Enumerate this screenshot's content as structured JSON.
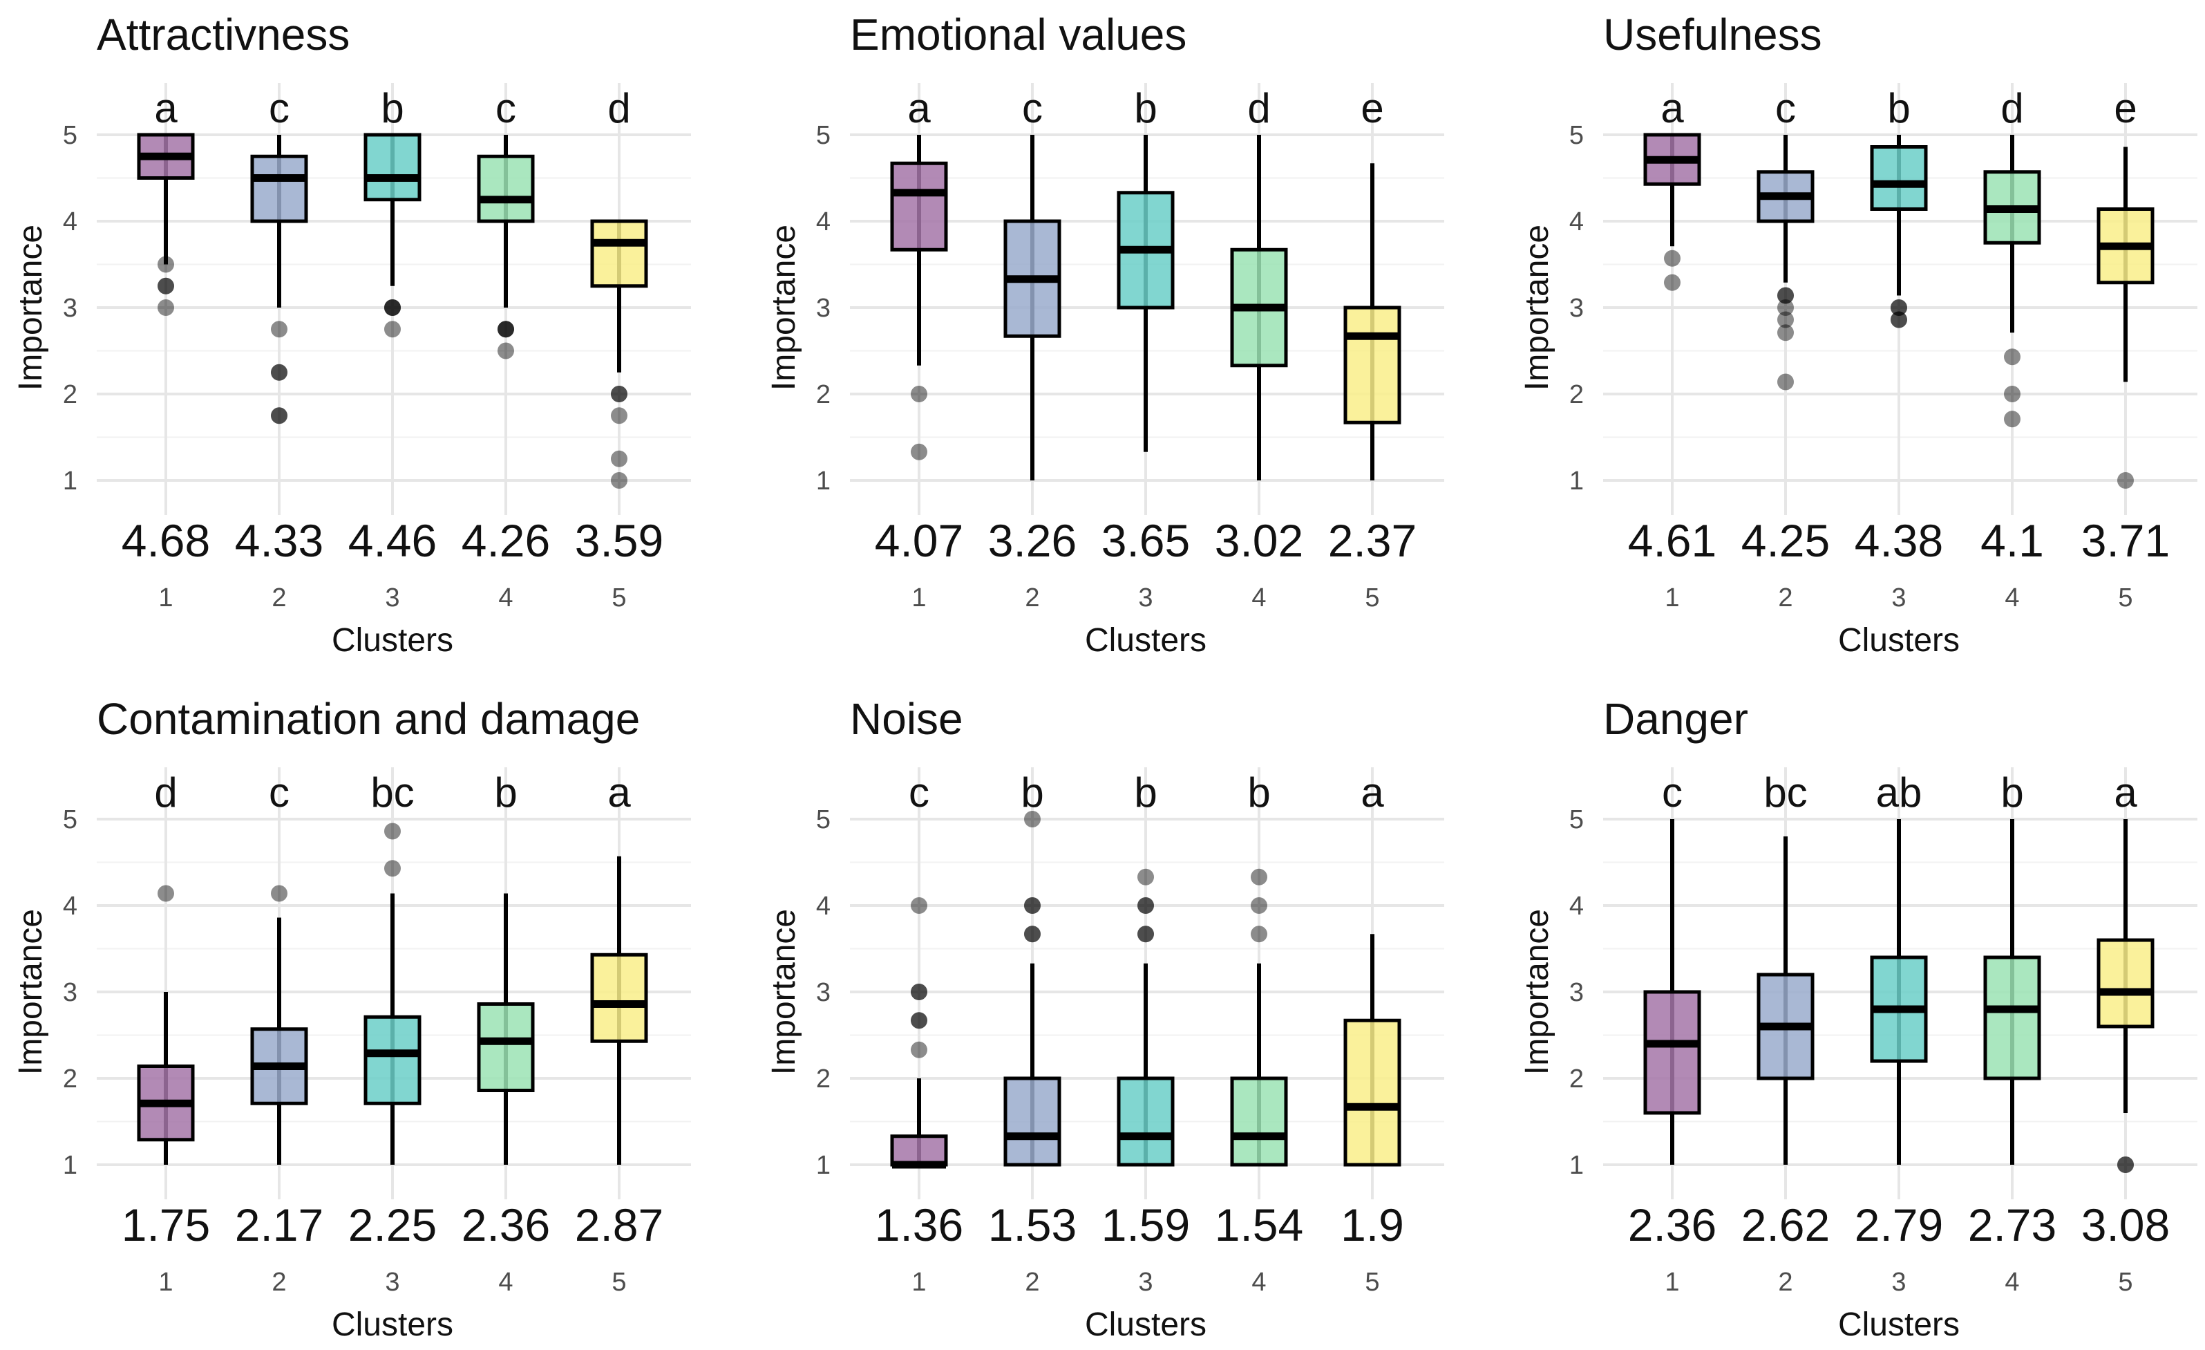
{
  "chart_data": [
    {
      "type": "box",
      "title": "Attractivness",
      "xlabel": "Clusters",
      "ylabel": "Importance",
      "ylim": [
        0.6,
        5.6
      ],
      "yticks": [
        1,
        2,
        3,
        4,
        5
      ],
      "categories": [
        "1",
        "2",
        "3",
        "4",
        "5"
      ],
      "letters": [
        "a",
        "c",
        "b",
        "c",
        "d"
      ],
      "means": [
        "4.68",
        "4.33",
        "4.46",
        "4.26",
        "3.59"
      ],
      "boxes": [
        {
          "whisker_low": 3.5,
          "q1": 4.5,
          "median": 4.75,
          "q3": 5.0,
          "whisker_high": 5.0,
          "outliers": [
            3.5,
            3.25,
            3.25,
            3.0
          ]
        },
        {
          "whisker_low": 3.0,
          "q1": 4.0,
          "median": 4.5,
          "q3": 4.75,
          "whisker_high": 5.0,
          "outliers": [
            2.75,
            2.25,
            2.25,
            1.75,
            1.75
          ]
        },
        {
          "whisker_low": 3.25,
          "q1": 4.25,
          "median": 4.5,
          "q3": 5.0,
          "whisker_high": 5.0,
          "outliers": [
            3.0,
            3.0,
            3.0,
            2.75
          ]
        },
        {
          "whisker_low": 3.0,
          "q1": 4.0,
          "median": 4.25,
          "q3": 4.75,
          "whisker_high": 5.0,
          "outliers": [
            2.75,
            2.75,
            2.75,
            2.5
          ]
        },
        {
          "whisker_low": 2.25,
          "q1": 3.25,
          "median": 3.75,
          "q3": 4.0,
          "whisker_high": 4.0,
          "outliers": [
            2.0,
            2.0,
            1.75,
            1.25,
            1.0
          ]
        }
      ]
    },
    {
      "type": "box",
      "title": "Emotional values",
      "xlabel": "Clusters",
      "ylabel": "Importance",
      "ylim": [
        0.6,
        5.6
      ],
      "yticks": [
        1,
        2,
        3,
        4,
        5
      ],
      "categories": [
        "1",
        "2",
        "3",
        "4",
        "5"
      ],
      "letters": [
        "a",
        "c",
        "b",
        "d",
        "e"
      ],
      "means": [
        "4.07",
        "3.26",
        "3.65",
        "3.02",
        "2.37"
      ],
      "boxes": [
        {
          "whisker_low": 2.33,
          "q1": 3.67,
          "median": 4.33,
          "q3": 4.67,
          "whisker_high": 5.0,
          "outliers": [
            2.0,
            1.33
          ]
        },
        {
          "whisker_low": 1.0,
          "q1": 2.67,
          "median": 3.33,
          "q3": 4.0,
          "whisker_high": 5.0,
          "outliers": []
        },
        {
          "whisker_low": 1.33,
          "q1": 3.0,
          "median": 3.67,
          "q3": 4.33,
          "whisker_high": 5.0,
          "outliers": []
        },
        {
          "whisker_low": 1.0,
          "q1": 2.33,
          "median": 3.0,
          "q3": 3.67,
          "whisker_high": 5.0,
          "outliers": []
        },
        {
          "whisker_low": 1.0,
          "q1": 1.67,
          "median": 2.67,
          "q3": 3.0,
          "whisker_high": 4.67,
          "outliers": []
        }
      ]
    },
    {
      "type": "box",
      "title": "Usefulness",
      "xlabel": "Clusters",
      "ylabel": "Importance",
      "ylim": [
        0.6,
        5.6
      ],
      "yticks": [
        1,
        2,
        3,
        4,
        5
      ],
      "categories": [
        "1",
        "2",
        "3",
        "4",
        "5"
      ],
      "letters": [
        "a",
        "c",
        "b",
        "d",
        "e"
      ],
      "means": [
        "4.61",
        "4.25",
        "4.38",
        "4.1",
        "3.71"
      ],
      "boxes": [
        {
          "whisker_low": 3.71,
          "q1": 4.43,
          "median": 4.71,
          "q3": 5.0,
          "whisker_high": 5.0,
          "outliers": [
            3.57,
            3.29
          ]
        },
        {
          "whisker_low": 3.29,
          "q1": 4.0,
          "median": 4.29,
          "q3": 4.57,
          "whisker_high": 5.0,
          "outliers": [
            3.14,
            3.14,
            3.0,
            2.86,
            2.71,
            2.14
          ]
        },
        {
          "whisker_low": 3.14,
          "q1": 4.14,
          "median": 4.43,
          "q3": 4.86,
          "whisker_high": 5.0,
          "outliers": [
            3.0,
            3.0,
            2.86,
            2.86
          ]
        },
        {
          "whisker_low": 2.71,
          "q1": 3.75,
          "median": 4.14,
          "q3": 4.57,
          "whisker_high": 5.0,
          "outliers": [
            2.43,
            2.0,
            1.71
          ]
        },
        {
          "whisker_low": 2.14,
          "q1": 3.29,
          "median": 3.71,
          "q3": 4.14,
          "whisker_high": 4.86,
          "outliers": [
            1.0
          ]
        }
      ]
    },
    {
      "type": "box",
      "title": "Contamination and damage",
      "xlabel": "Clusters",
      "ylabel": "Importance",
      "ylim": [
        0.6,
        5.6
      ],
      "yticks": [
        1,
        2,
        3,
        4,
        5
      ],
      "categories": [
        "1",
        "2",
        "3",
        "4",
        "5"
      ],
      "letters": [
        "d",
        "c",
        "bc",
        "b",
        "a"
      ],
      "means": [
        "1.75",
        "2.17",
        "2.25",
        "2.36",
        "2.87"
      ],
      "boxes": [
        {
          "whisker_low": 1.0,
          "q1": 1.29,
          "median": 1.71,
          "q3": 2.14,
          "whisker_high": 3.0,
          "outliers": [
            4.14
          ]
        },
        {
          "whisker_low": 1.0,
          "q1": 1.71,
          "median": 2.14,
          "q3": 2.57,
          "whisker_high": 3.86,
          "outliers": [
            4.14
          ]
        },
        {
          "whisker_low": 1.0,
          "q1": 1.71,
          "median": 2.29,
          "q3": 2.71,
          "whisker_high": 4.14,
          "outliers": [
            4.86,
            4.43
          ]
        },
        {
          "whisker_low": 1.0,
          "q1": 1.86,
          "median": 2.43,
          "q3": 2.86,
          "whisker_high": 4.14,
          "outliers": []
        },
        {
          "whisker_low": 1.0,
          "q1": 2.43,
          "median": 2.86,
          "q3": 3.43,
          "whisker_high": 4.57,
          "outliers": []
        }
      ]
    },
    {
      "type": "box",
      "title": "Noise",
      "xlabel": "Clusters",
      "ylabel": "Importance",
      "ylim": [
        0.6,
        5.6
      ],
      "yticks": [
        1,
        2,
        3,
        4,
        5
      ],
      "categories": [
        "1",
        "2",
        "3",
        "4",
        "5"
      ],
      "letters": [
        "c",
        "b",
        "b",
        "b",
        "a"
      ],
      "means": [
        "1.36",
        "1.53",
        "1.59",
        "1.54",
        "1.9"
      ],
      "boxes": [
        {
          "whisker_low": 1.0,
          "q1": 1.0,
          "median": 1.0,
          "q3": 1.33,
          "whisker_high": 2.0,
          "outliers": [
            4.0,
            3.0,
            3.0,
            2.67,
            2.67,
            2.33
          ]
        },
        {
          "whisker_low": 1.0,
          "q1": 1.0,
          "median": 1.33,
          "q3": 2.0,
          "whisker_high": 3.33,
          "outliers": [
            5.0,
            4.0,
            4.0,
            3.67,
            3.67
          ]
        },
        {
          "whisker_low": 1.0,
          "q1": 1.0,
          "median": 1.33,
          "q3": 2.0,
          "whisker_high": 3.33,
          "outliers": [
            4.33,
            4.0,
            4.0,
            3.67,
            3.67
          ]
        },
        {
          "whisker_low": 1.0,
          "q1": 1.0,
          "median": 1.33,
          "q3": 2.0,
          "whisker_high": 3.33,
          "outliers": [
            4.33,
            4.0,
            3.67
          ]
        },
        {
          "whisker_low": 1.0,
          "q1": 1.0,
          "median": 1.67,
          "q3": 2.67,
          "whisker_high": 3.67,
          "outliers": []
        }
      ]
    },
    {
      "type": "box",
      "title": "Danger",
      "xlabel": "Clusters",
      "ylabel": "Importance",
      "ylim": [
        0.6,
        5.6
      ],
      "yticks": [
        1,
        2,
        3,
        4,
        5
      ],
      "categories": [
        "1",
        "2",
        "3",
        "4",
        "5"
      ],
      "letters": [
        "c",
        "bc",
        "ab",
        "b",
        "a"
      ],
      "means": [
        "2.36",
        "2.62",
        "2.79",
        "2.73",
        "3.08"
      ],
      "boxes": [
        {
          "whisker_low": 1.0,
          "q1": 1.6,
          "median": 2.4,
          "q3": 3.0,
          "whisker_high": 5.0,
          "outliers": []
        },
        {
          "whisker_low": 1.0,
          "q1": 2.0,
          "median": 2.6,
          "q3": 3.2,
          "whisker_high": 4.8,
          "outliers": []
        },
        {
          "whisker_low": 1.0,
          "q1": 2.2,
          "median": 2.8,
          "q3": 3.4,
          "whisker_high": 5.0,
          "outliers": []
        },
        {
          "whisker_low": 1.0,
          "q1": 2.0,
          "median": 2.8,
          "q3": 3.4,
          "whisker_high": 5.0,
          "outliers": []
        },
        {
          "whisker_low": 1.6,
          "q1": 2.6,
          "median": 3.0,
          "q3": 3.6,
          "whisker_high": 5.0,
          "outliers": [
            1.0,
            1.0
          ]
        }
      ]
    }
  ],
  "cluster_colors": [
    "#a475a8",
    "#9aabcc",
    "#6bcfc8",
    "#9be3b4",
    "#f9ef8a"
  ]
}
